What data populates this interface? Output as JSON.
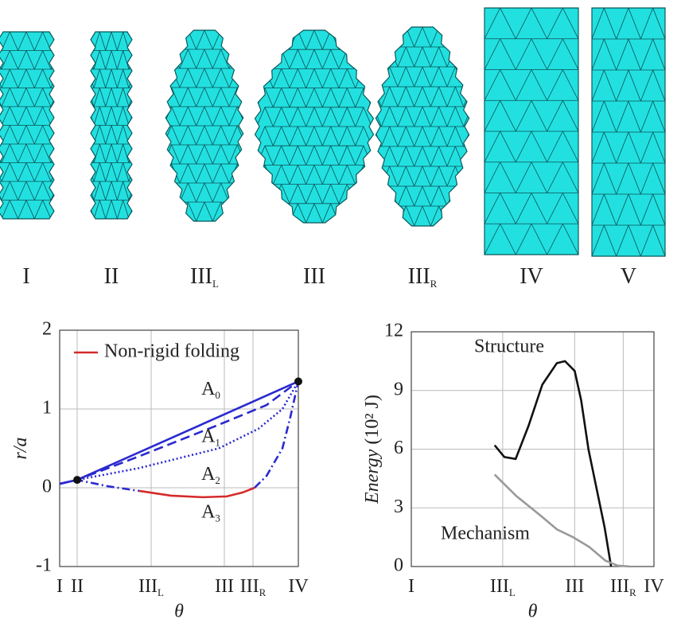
{
  "shapes": [
    {
      "text": "I"
    },
    {
      "text": "II"
    },
    {
      "text": "III",
      "sub": "L"
    },
    {
      "text": "III"
    },
    {
      "text": "III",
      "sub": "R"
    },
    {
      "text": "IV"
    },
    {
      "text": "V"
    }
  ],
  "chart_data": [
    {
      "type": "line",
      "xlabel": "θ",
      "ylabel": "r/a",
      "xlim": [
        0,
        3
      ],
      "ylim": [
        -1,
        2
      ],
      "yticks": [
        -1,
        0,
        1,
        2
      ],
      "xticks": [
        {
          "value": 0,
          "label": "I"
        },
        {
          "value": 0.22,
          "label": "II"
        },
        {
          "value": 1.15,
          "label": "III",
          "sub": "L"
        },
        {
          "value": 2.07,
          "label": "III"
        },
        {
          "value": 2.43,
          "label": "III",
          "sub": "R"
        },
        {
          "value": 3,
          "label": "IV"
        }
      ],
      "grid": true,
      "legend": "upper left",
      "series": [
        {
          "color": "#2a2ad0",
          "dash": "solid",
          "x": [
            0,
            0.22,
            3
          ],
          "values": [
            0.05,
            0.1,
            1.35
          ]
        },
        {
          "color": "#2a2ad0",
          "dash": "dashed",
          "x": [
            0,
            0.22,
            1,
            2,
            2.6,
            3
          ],
          "values": [
            0.05,
            0.1,
            0.4,
            0.8,
            1.05,
            1.35
          ]
        },
        {
          "color": "#2a2ad0",
          "dash": "dotted",
          "x": [
            0,
            0.22,
            1,
            2,
            2.5,
            2.8,
            3
          ],
          "values": [
            0.05,
            0.1,
            0.25,
            0.5,
            0.75,
            1.0,
            1.35
          ]
        },
        {
          "color": "#2a2ad0",
          "dash": "dashdot",
          "x": [
            0,
            0.22,
            0.6,
            1.0,
            null,
            2.45,
            2.6,
            2.8,
            2.9,
            3
          ],
          "values": [
            0.05,
            0.1,
            0.02,
            -0.04,
            null,
            0.0,
            0.15,
            0.5,
            0.9,
            1.35
          ]
        },
        {
          "name": "Non-rigid folding",
          "color": "#d42a2a",
          "dash": "solid",
          "x": [
            1.0,
            1.4,
            1.8,
            2.1,
            2.3,
            2.45
          ],
          "values": [
            -0.04,
            -0.1,
            -0.12,
            -0.11,
            -0.06,
            0.0
          ]
        }
      ],
      "points": {
        "color": "#111",
        "x": [
          0.22,
          3
        ],
        "values": [
          0.1,
          1.35
        ]
      },
      "annotations": [
        {
          "text": "A",
          "sub": "0",
          "x": 1.9,
          "y": 1.24
        },
        {
          "text": "A",
          "sub": "1",
          "x": 1.9,
          "y": 0.64
        },
        {
          "text": "A",
          "sub": "2",
          "x": 1.9,
          "y": 0.16
        },
        {
          "text": "A",
          "sub": "3",
          "x": 1.9,
          "y": -0.32
        }
      ]
    },
    {
      "type": "line",
      "xlabel": "θ",
      "ylabel": "Energy",
      "ylabel_unit": "(10² J)",
      "xlim": [
        0,
        3
      ],
      "ylim": [
        0,
        12
      ],
      "yticks": [
        0,
        3,
        6,
        9,
        12
      ],
      "xticks": [
        {
          "value": 0,
          "label": "I"
        },
        {
          "value": 1.13,
          "label": "III",
          "sub": "L"
        },
        {
          "value": 2.02,
          "label": "III"
        },
        {
          "value": 2.62,
          "label": "III",
          "sub": "R"
        },
        {
          "value": 3,
          "label": "IV"
        }
      ],
      "grid": true,
      "legend": "none",
      "series": [
        {
          "name": "Structure",
          "color": "#111",
          "dash": "solid",
          "x": [
            1.03,
            1.15,
            1.29,
            1.45,
            1.62,
            1.8,
            1.9,
            2.02,
            2.1,
            2.19,
            2.3,
            2.39,
            2.47
          ],
          "values": [
            6.2,
            5.6,
            5.5,
            7.2,
            9.3,
            10.4,
            10.5,
            10.0,
            8.5,
            6.0,
            3.8,
            2.0,
            0
          ]
        },
        {
          "name": "Mechanism",
          "color": "#999",
          "dash": "solid",
          "x": [
            1.03,
            1.3,
            1.6,
            1.8,
            2.0,
            2.2,
            2.4,
            2.55,
            2.7
          ],
          "values": [
            4.7,
            3.6,
            2.6,
            1.9,
            1.5,
            1.0,
            0.3,
            0.05,
            0
          ]
        }
      ]
    }
  ]
}
